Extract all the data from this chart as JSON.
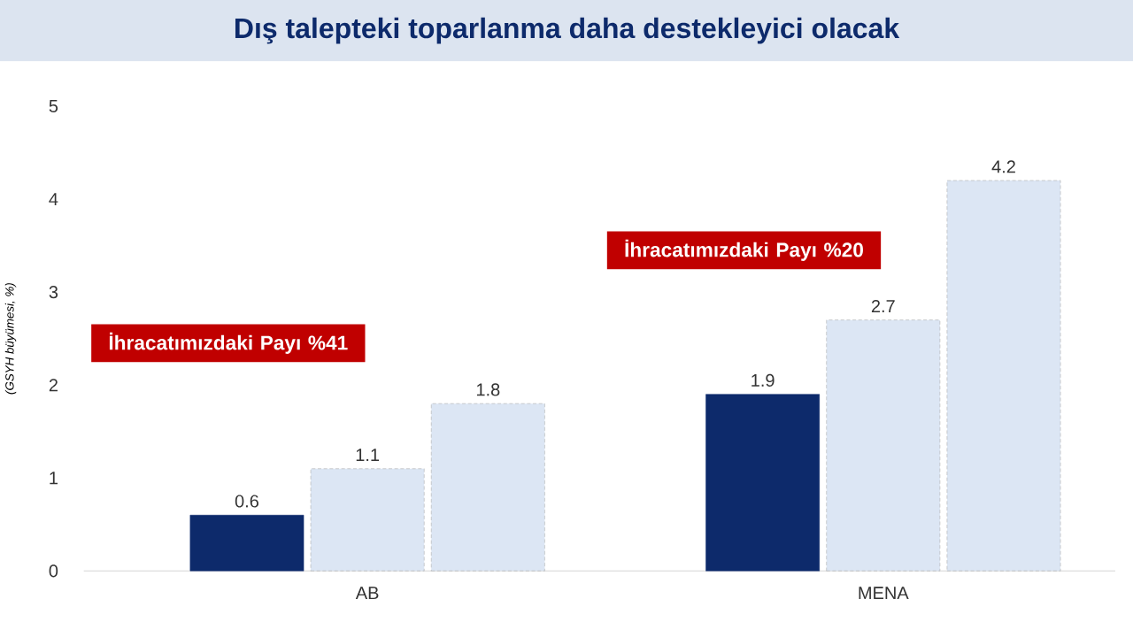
{
  "chart_data": {
    "type": "bar",
    "title": "Dış talepteki toparlanma daha destekleyici olacak",
    "ylabel": "(GSYH büyümesi, %)",
    "categories": [
      "AB",
      "MENA"
    ],
    "series": [
      {
        "color": "#0d2a6b",
        "values": [
          0.6,
          1.9
        ],
        "line_style": "solid"
      },
      {
        "color": "#dce6f4",
        "values": [
          1.1,
          2.7
        ],
        "line_style": "dashed"
      },
      {
        "color": "#dce6f4",
        "values": [
          1.8,
          4.2
        ],
        "line_style": "dashed"
      }
    ],
    "ylim": [
      0,
      5
    ],
    "yticks": [
      0,
      1,
      2,
      3,
      4,
      5
    ],
    "grid": false,
    "data_labels": true,
    "annotations": [
      "İhracatımızdaki Payı %41",
      "İhracatımızdaki Payı %20"
    ]
  }
}
